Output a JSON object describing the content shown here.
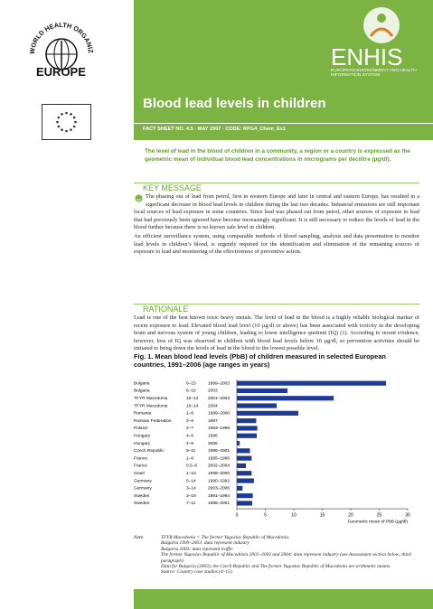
{
  "header": {
    "who_name": "WORLD HEALTH ORGANIZATION",
    "who_region": "EUROPE",
    "enhis": "ENHIS",
    "enhis_full": "EUROPEAN ENVIRONMENT AND HEALTH INFORMATION SYSTEM",
    "title": "Blood lead levels in children",
    "meta": "FACT SHEET NO. 4.5 · MAY 2007 · CODE: RPG4_Chem_Ex1"
  },
  "intro": "The level of lead in the blood of children in a community, a region or a country is expressed as the geometric mean of individual blood lead concentrations in micrograms per decilitre (µg/dl).",
  "sections": [
    {
      "heading": "KEY MESSAGE",
      "paragraphs": [
        "The phasing out of lead from petrol, first in western Europe and later in central and eastern Europe, has resulted in a significant decrease in blood lead levels in children during the last two decades. Industrial emissions are still important local sources of lead exposure in some countries. Since lead was phased out from petrol, other sources of exposure to lead that had previously been ignored have become increasingly significant. It is still necessary to reduce the levels of lead in the blood further because there is no known safe level in children.",
        "An efficient surveillance system, using comparable methods of blood sampling, analysis and data presentation to monitor lead levels in children’s blood, is urgently required for the identification and elimination of the remaining sources of exposure to lead and monitoring of the effectiveness of preventive action."
      ]
    },
    {
      "heading": "RATIONALE",
      "paragraphs": [
        "Lead is one of the best known toxic heavy metals. The level of lead in the blood is a highly reliable biological marker of recent exposure to lead. Elevated blood lead level (10 µg/dl or above) has been associated with toxicity in the developing brain and nervous system of young children, leading to lower intelligence quotient (IQ) (1). According to recent evidence, however, loss of IQ was observed in children with blood lead levels below 10 µg/dl, so prevention activities should be initiated to bring down the levels of lead in the blood to the lowest possible level."
      ]
    }
  ],
  "chart_data": {
    "type": "bar",
    "orientation": "horizontal",
    "title": "Fig. 1. Mean blood lead levels (PbB) of children measured in selected European countries, 1991–2006 (age ranges in years)",
    "categories": [
      "Bulgaria",
      "Bulgaria",
      "TFYR Macedonia",
      "TFYR Macedonia",
      "Romania",
      "Russian Federation",
      "Poland",
      "Hungary",
      "Hungary",
      "Czech Republic",
      "France",
      "France",
      "Israel",
      "Germany",
      "Germany",
      "Sweden",
      "Sweden"
    ],
    "ages": [
      "6–15",
      "6–15",
      "10–14",
      "10–14",
      "1–6",
      "2–6",
      "2–7",
      "4–6",
      "4–6",
      "8–11",
      "1–6",
      "0.5–6",
      "1–10",
      "6–14",
      "3–14",
      "3–19",
      "7–11"
    ],
    "periods": [
      "1999–2003",
      "2003",
      "2001–2003",
      "2004",
      "1999–2000",
      "1997",
      "1993–1999",
      "1996",
      "2006",
      "1996–2001",
      "1995–1996",
      "2002–2004",
      "1998–2000",
      "1990–1992",
      "2003–2006",
      "1991–1994",
      "1995–2001"
    ],
    "values": [
      26.2,
      8.9,
      17.0,
      7.0,
      10.8,
      3.4,
      3.6,
      3.5,
      0.5,
      2.3,
      2.6,
      1.6,
      2.6,
      3.0,
      1.0,
      2.8,
      2.7
    ],
    "color": "#1f3a93",
    "xlim": [
      0,
      30
    ],
    "xticks": [
      0,
      5,
      10,
      15,
      20,
      25,
      30
    ],
    "xlabel": "Geometric mean of PbB (µg/dl)"
  },
  "notes": {
    "label": "Note.",
    "lines": [
      "TFYR Macedonia = The former Yugoslav Republic of Macedonia.",
      "Bulgaria 1999–2003: data represent industry",
      "Bulgaria 2003: data represent traffic",
      "The former Yugoslav Republic of Macedonia 2001–2003 and 2004: data represent industry (see Assessment section below; third paragraph)",
      "Data for Bulgaria (2003), the Czech Republic and The former Yugoslav Republic of Macedonia are arithmetic means."
    ],
    "source": "Source: Country case studies (4–15)."
  }
}
